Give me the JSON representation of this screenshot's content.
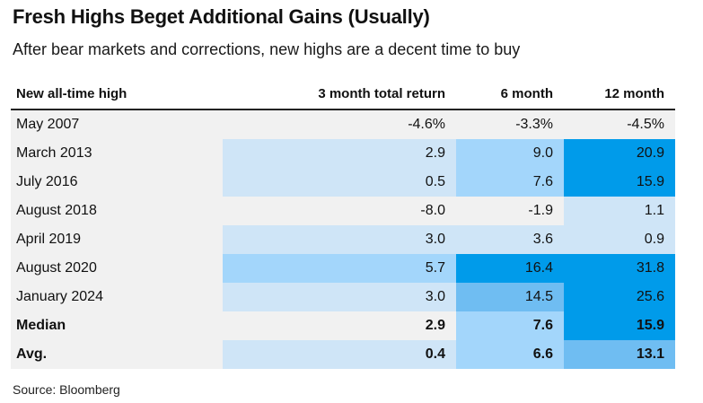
{
  "title": "Fresh Highs Beget Additional Gains (Usually)",
  "subtitle": "After bear markets and corrections, new highs are a decent time to buy",
  "source": "Source: Bloomberg",
  "colors": {
    "neutral": "#f1f1f1",
    "light": "#cfe5f7",
    "medium": "#a3d6fb",
    "strong": "#6fbdf2",
    "dark": "#009bea"
  },
  "chart_data": {
    "type": "table",
    "columns": [
      "New all-time high",
      "3 month total return",
      "6 month",
      "12 month"
    ],
    "rows": [
      {
        "label": "May 2007",
        "values": [
          "-4.6%",
          "-3.3%",
          "-4.5%"
        ],
        "shades": [
          "neutral",
          "neutral",
          "neutral"
        ],
        "bold": false
      },
      {
        "label": "March 2013",
        "values": [
          "2.9",
          "9.0",
          "20.9"
        ],
        "shades": [
          "light",
          "medium",
          "dark"
        ],
        "bold": false
      },
      {
        "label": "July 2016",
        "values": [
          "0.5",
          "7.6",
          "15.9"
        ],
        "shades": [
          "light",
          "medium",
          "dark"
        ],
        "bold": false
      },
      {
        "label": "August 2018",
        "values": [
          "-8.0",
          "-1.9",
          "1.1"
        ],
        "shades": [
          "neutral",
          "neutral",
          "light"
        ],
        "bold": false
      },
      {
        "label": "April 2019",
        "values": [
          "3.0",
          "3.6",
          "0.9"
        ],
        "shades": [
          "light",
          "light",
          "light"
        ],
        "bold": false
      },
      {
        "label": "August 2020",
        "values": [
          "5.7",
          "16.4",
          "31.8"
        ],
        "shades": [
          "medium",
          "dark",
          "dark"
        ],
        "bold": false
      },
      {
        "label": "January 2024",
        "values": [
          "3.0",
          "14.5",
          "25.6"
        ],
        "shades": [
          "light",
          "strong",
          "dark"
        ],
        "bold": false
      },
      {
        "label": "Median",
        "values": [
          "2.9",
          "7.6",
          "15.9"
        ],
        "shades": [
          "neutral",
          "medium",
          "dark"
        ],
        "bold": true
      },
      {
        "label": "Avg.",
        "values": [
          "0.4",
          "6.6",
          "13.1"
        ],
        "shades": [
          "light",
          "medium",
          "strong"
        ],
        "bold": true
      }
    ]
  }
}
